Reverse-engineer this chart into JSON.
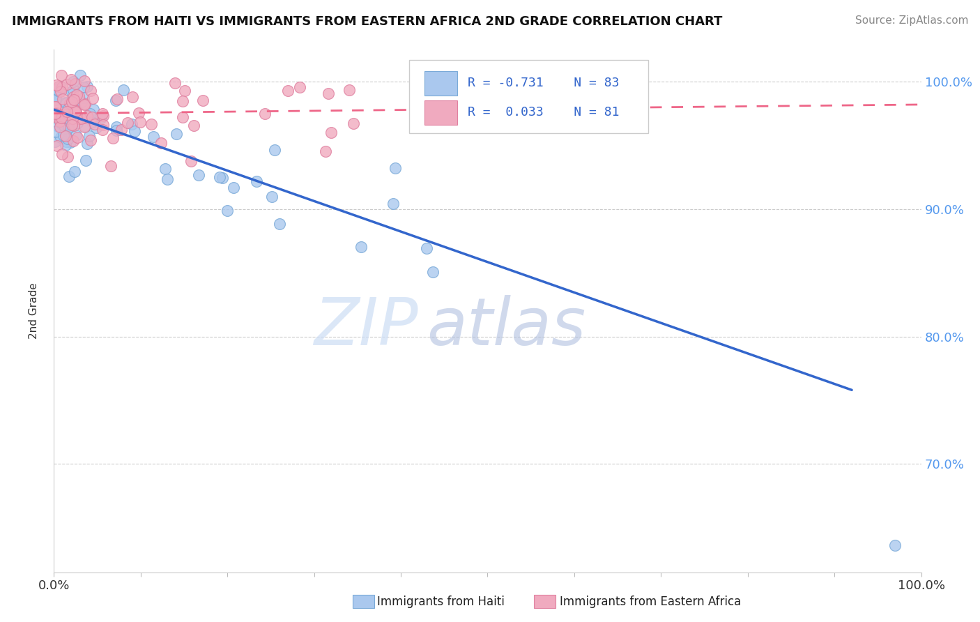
{
  "title": "IMMIGRANTS FROM HAITI VS IMMIGRANTS FROM EASTERN AFRICA 2ND GRADE CORRELATION CHART",
  "source": "Source: ZipAtlas.com",
  "ylabel": "2nd Grade",
  "xlim": [
    0.0,
    1.0
  ],
  "ylim": [
    0.615,
    1.025
  ],
  "y_ticks": [
    0.7,
    0.8,
    0.9,
    1.0
  ],
  "watermark_zip": "ZIP",
  "watermark_atlas": "atlas",
  "haiti_color": "#aac8ee",
  "haiti_edge": "#7aaad8",
  "eastern_africa_color": "#f0aabf",
  "eastern_africa_edge": "#e080a0",
  "haiti_trend_x0": 0.0,
  "haiti_trend_y0": 0.978,
  "haiti_trend_x1": 0.92,
  "haiti_trend_y1": 0.758,
  "eastern_trend_x0": 0.0,
  "eastern_trend_y0": 0.975,
  "eastern_trend_x1": 1.0,
  "eastern_trend_y1": 0.982,
  "grid_color": "#cccccc",
  "trend_blue": "#3366cc",
  "trend_pink": "#ee6688",
  "tick_color": "#5599ee",
  "title_fontsize": 13,
  "source_fontsize": 11,
  "ylabel_fontsize": 11
}
